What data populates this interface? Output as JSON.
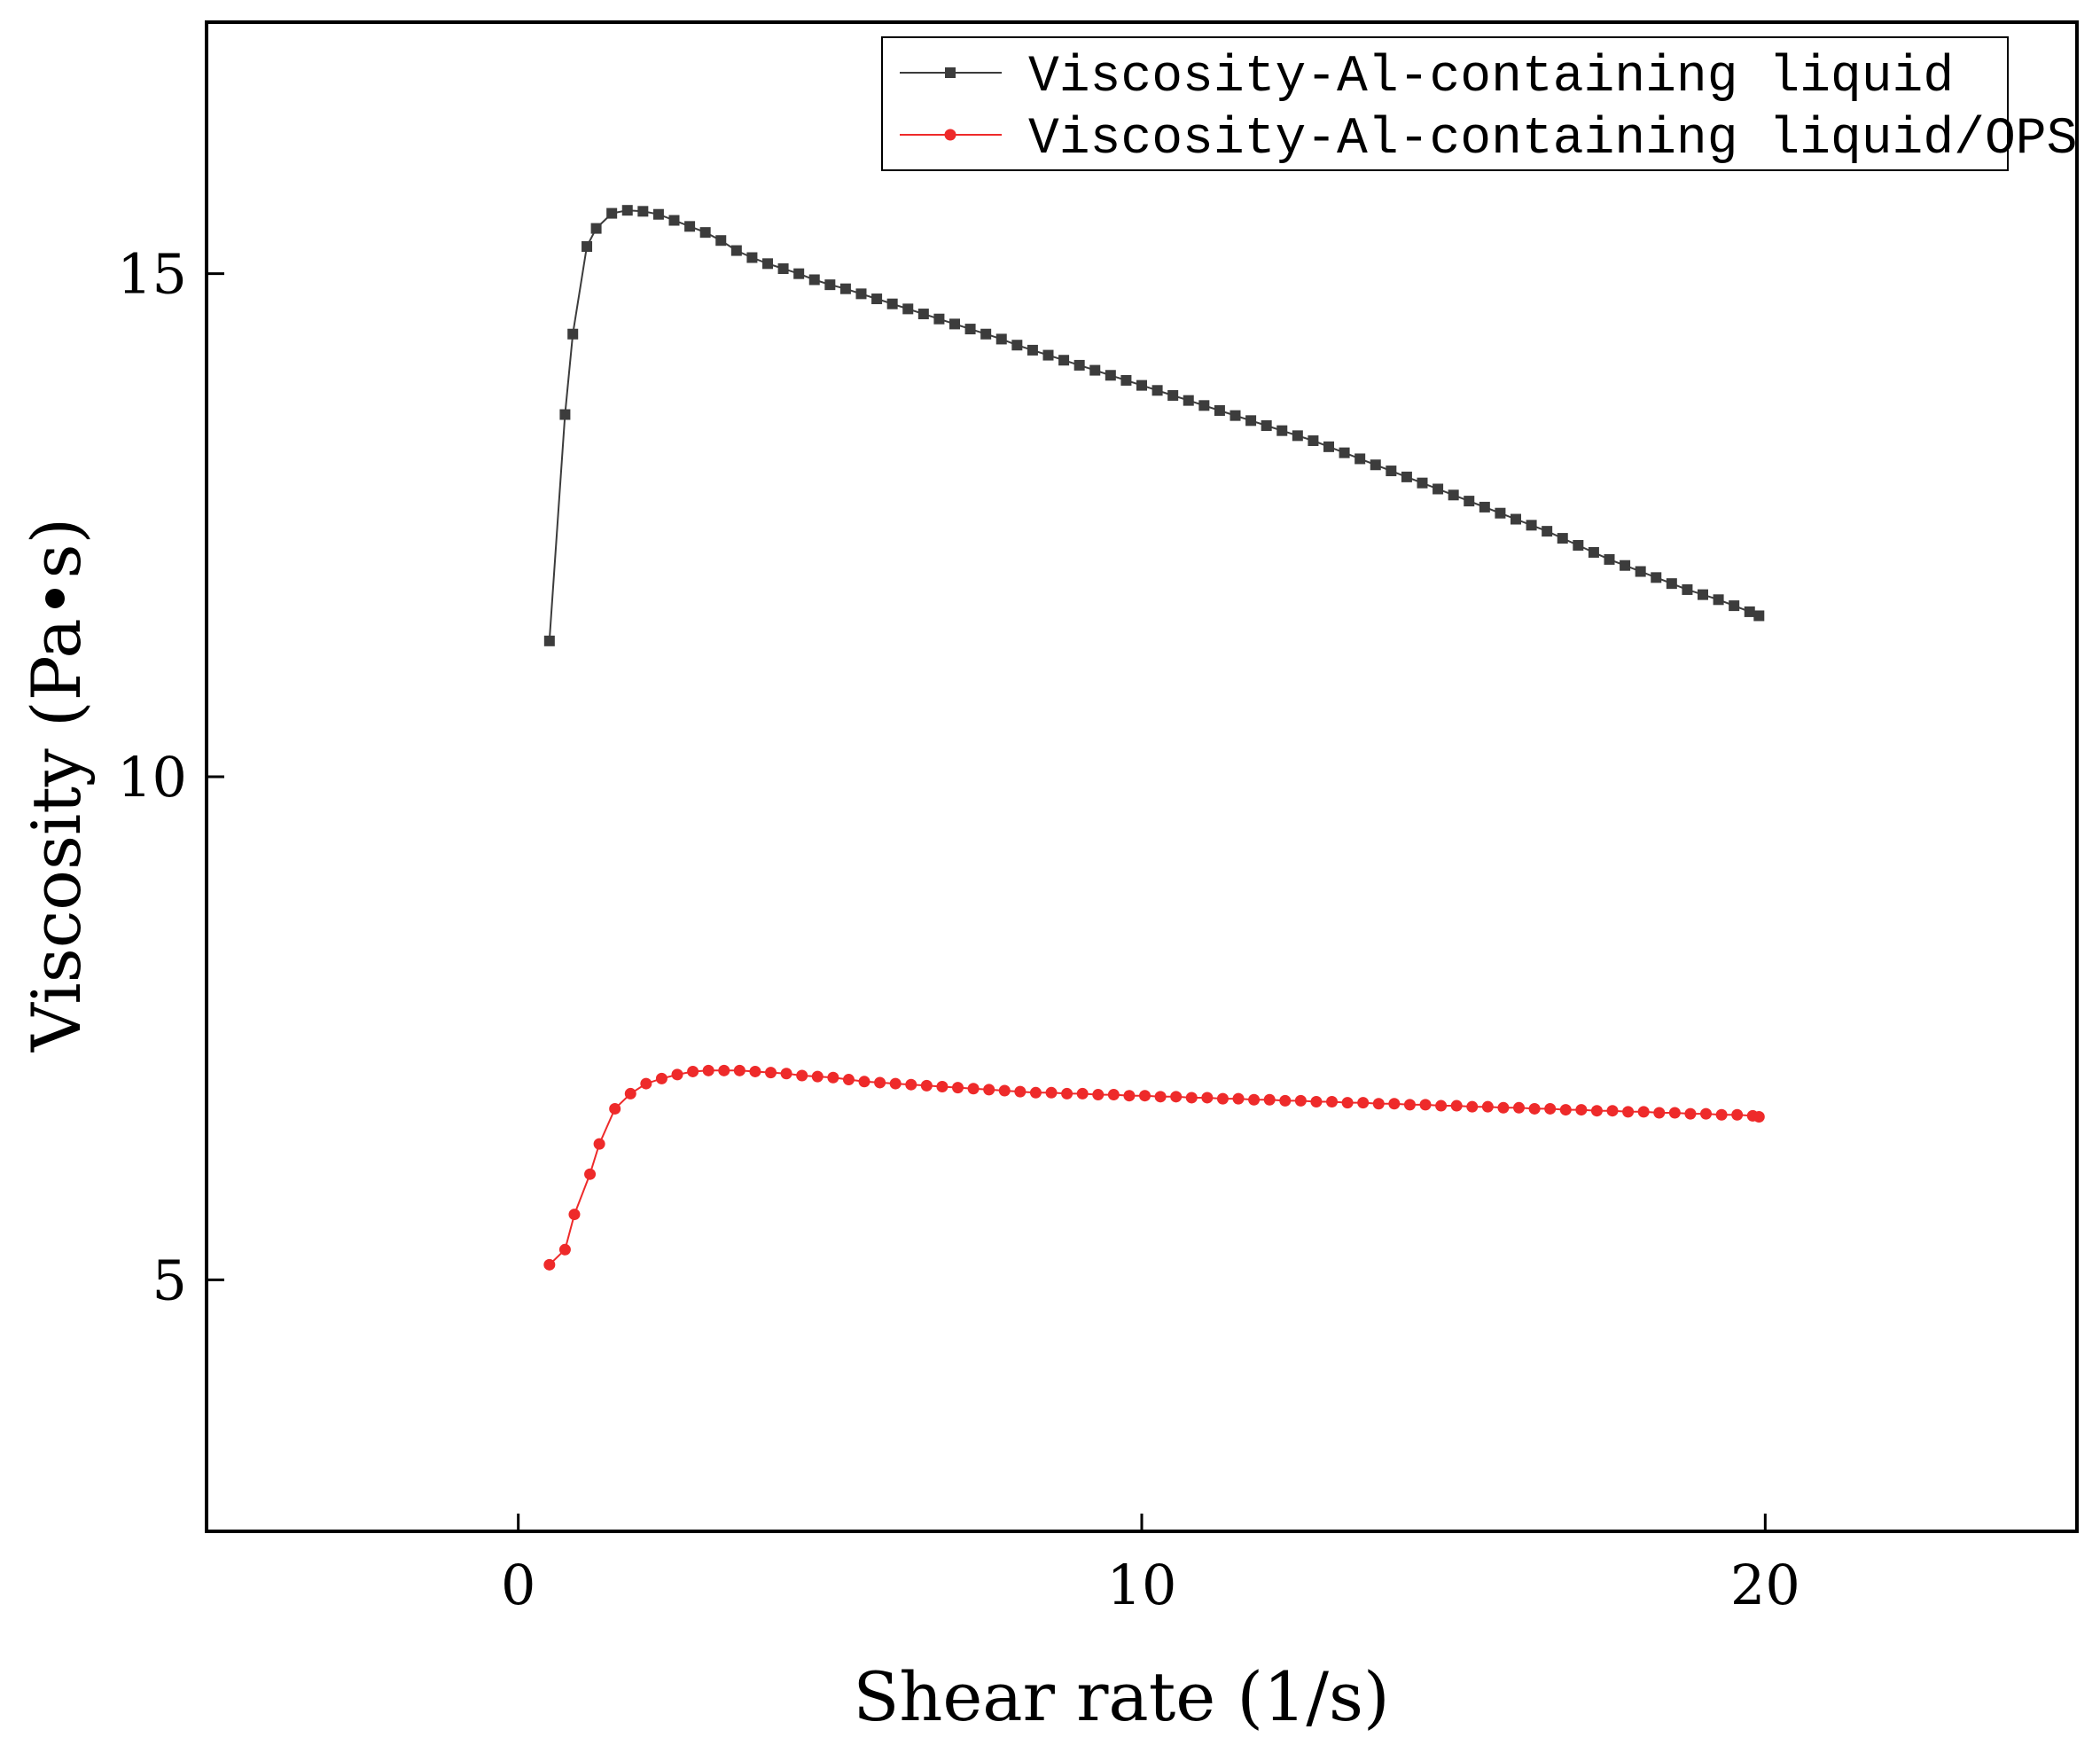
{
  "chart_data": {
    "type": "line",
    "title": "",
    "xlabel": "Shear rate (1/s)",
    "ylabel": "Viscosity (Pa•s)",
    "xlim": [
      -5,
      25
    ],
    "ylim": [
      2.5,
      17.5
    ],
    "xticks": [
      0,
      10,
      20
    ],
    "yticks": [
      5,
      10,
      15
    ],
    "xtick_labels": [
      "0",
      "10",
      "20"
    ],
    "ytick_labels": [
      "5",
      "10",
      "15"
    ],
    "grid": false,
    "legend_position": "top-right",
    "series": [
      {
        "name": "Viscosity-Al-containing liquid",
        "color": "#3c3c3c",
        "marker": "square",
        "x": [
          0.5,
          0.75,
          0.875,
          1.1,
          1.25,
          1.5,
          1.75,
          2.0,
          2.25,
          2.5,
          2.75,
          3.0,
          3.25,
          3.5,
          3.75,
          4.0,
          4.25,
          4.5,
          4.75,
          5.0,
          5.25,
          5.5,
          5.75,
          6.0,
          6.25,
          6.5,
          6.75,
          7.0,
          7.25,
          7.5,
          7.75,
          8.0,
          8.25,
          8.5,
          8.75,
          9.0,
          9.25,
          9.5,
          9.75,
          10.0,
          10.25,
          10.5,
          10.75,
          11.0,
          11.25,
          11.5,
          11.75,
          12.0,
          12.25,
          12.5,
          12.75,
          13.0,
          13.25,
          13.5,
          13.75,
          14.0,
          14.25,
          14.5,
          14.75,
          15.0,
          15.25,
          15.5,
          15.75,
          16.0,
          16.25,
          16.5,
          16.75,
          17.0,
          17.25,
          17.5,
          17.75,
          18.0,
          18.25,
          18.5,
          18.75,
          19.0,
          19.25,
          19.5,
          19.75,
          19.9
        ],
        "y": [
          11.35,
          13.6,
          14.4,
          15.27,
          15.45,
          15.6,
          15.63,
          15.62,
          15.59,
          15.53,
          15.47,
          15.41,
          15.33,
          15.23,
          15.16,
          15.1,
          15.05,
          15.0,
          14.94,
          14.89,
          14.85,
          14.8,
          14.75,
          14.7,
          14.65,
          14.6,
          14.55,
          14.5,
          14.45,
          14.4,
          14.35,
          14.29,
          14.24,
          14.19,
          14.14,
          14.09,
          14.04,
          13.99,
          13.94,
          13.89,
          13.84,
          13.79,
          13.74,
          13.69,
          13.64,
          13.59,
          13.54,
          13.49,
          13.44,
          13.39,
          13.34,
          13.28,
          13.22,
          13.16,
          13.1,
          13.04,
          12.98,
          12.92,
          12.86,
          12.8,
          12.74,
          12.68,
          12.62,
          12.56,
          12.5,
          12.44,
          12.37,
          12.3,
          12.23,
          12.16,
          12.1,
          12.04,
          11.98,
          11.92,
          11.86,
          11.81,
          11.76,
          11.7,
          11.64,
          11.6
        ]
      },
      {
        "name": "Viscosity-Al-containing liquid/OPS",
        "color": "#ee2a2a",
        "marker": "circle",
        "x": [
          0.5,
          0.75,
          0.9,
          1.15,
          1.3,
          1.55,
          1.8,
          2.05,
          2.3,
          2.55,
          2.8,
          3.05,
          3.3,
          3.55,
          3.8,
          4.05,
          4.3,
          4.55,
          4.8,
          5.05,
          5.3,
          5.55,
          5.8,
          6.05,
          6.3,
          6.55,
          6.8,
          7.05,
          7.3,
          7.55,
          7.8,
          8.05,
          8.3,
          8.55,
          8.8,
          9.05,
          9.3,
          9.55,
          9.8,
          10.05,
          10.3,
          10.55,
          10.8,
          11.05,
          11.3,
          11.55,
          11.8,
          12.05,
          12.3,
          12.55,
          12.8,
          13.05,
          13.3,
          13.55,
          13.8,
          14.05,
          14.3,
          14.55,
          14.8,
          15.05,
          15.3,
          15.55,
          15.8,
          16.05,
          16.3,
          16.55,
          16.8,
          17.05,
          17.3,
          17.55,
          17.8,
          18.05,
          18.3,
          18.55,
          18.8,
          19.05,
          19.3,
          19.55,
          19.8,
          19.9
        ],
        "y": [
          5.15,
          5.3,
          5.65,
          6.05,
          6.35,
          6.7,
          6.85,
          6.95,
          7.0,
          7.04,
          7.07,
          7.08,
          7.08,
          7.08,
          7.07,
          7.06,
          7.05,
          7.03,
          7.02,
          7.01,
          6.99,
          6.97,
          6.96,
          6.95,
          6.94,
          6.93,
          6.92,
          6.91,
          6.9,
          6.89,
          6.88,
          6.87,
          6.86,
          6.86,
          6.85,
          6.85,
          6.84,
          6.84,
          6.83,
          6.83,
          6.82,
          6.82,
          6.81,
          6.81,
          6.8,
          6.8,
          6.79,
          6.79,
          6.78,
          6.78,
          6.77,
          6.77,
          6.76,
          6.76,
          6.75,
          6.75,
          6.74,
          6.74,
          6.73,
          6.73,
          6.72,
          6.72,
          6.71,
          6.71,
          6.7,
          6.7,
          6.69,
          6.69,
          6.68,
          6.68,
          6.67,
          6.67,
          6.66,
          6.66,
          6.65,
          6.65,
          6.64,
          6.64,
          6.63,
          6.62
        ]
      }
    ]
  }
}
